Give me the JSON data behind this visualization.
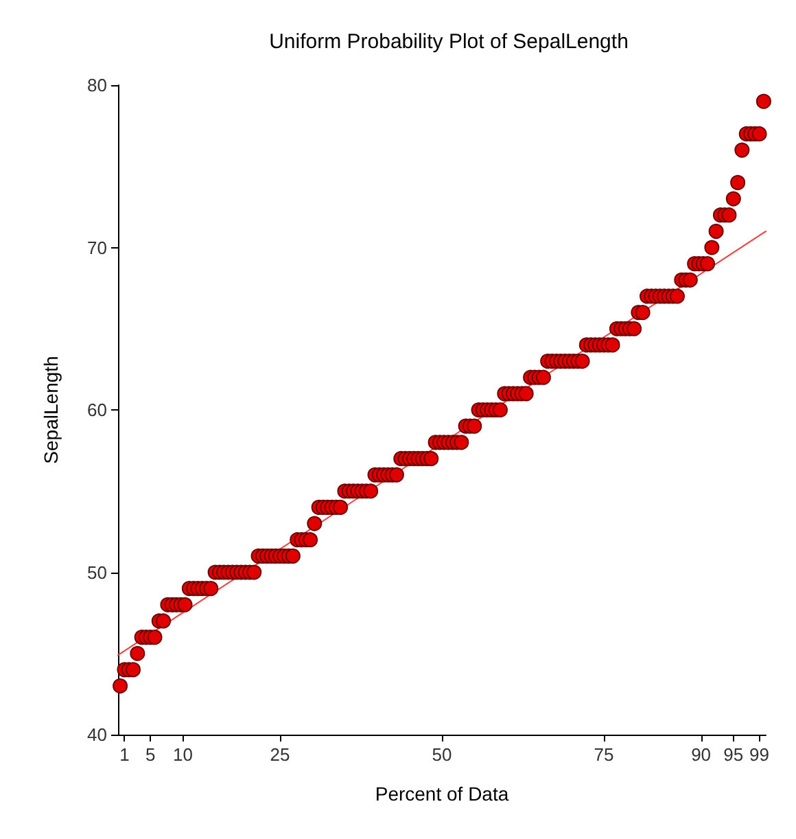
{
  "chart_data": {
    "type": "scatter",
    "title": "Uniform Probability Plot of SepalLength",
    "xlabel": "Percent of Data",
    "ylabel": "SepalLength",
    "xlim": [
      0,
      100
    ],
    "ylim": [
      40,
      80
    ],
    "xticks": [
      1,
      5,
      10,
      25,
      50,
      75,
      90,
      95,
      99
    ],
    "yticks": [
      40,
      50,
      60,
      70,
      80
    ],
    "grid": false,
    "series": [
      {
        "type": "scatter",
        "color": "#e00000",
        "marker": "circle",
        "x": [
          0.33,
          1,
          1.67,
          2.33,
          3,
          3.67,
          4.33,
          5,
          5.67,
          6.33,
          7,
          7.67,
          8.33,
          9,
          9.67,
          10.33,
          11,
          11.67,
          12.33,
          13,
          13.67,
          14.33,
          15,
          15.67,
          16.33,
          17,
          17.67,
          18.33,
          19,
          19.67,
          20.33,
          21,
          21.67,
          22.33,
          23,
          23.67,
          24.33,
          25,
          25.67,
          26.33,
          27,
          27.67,
          28.33,
          29,
          29.67,
          30.33,
          31,
          31.67,
          32.33,
          33,
          33.67,
          34.33,
          35,
          35.67,
          36.33,
          37,
          37.67,
          38.33,
          39,
          39.67,
          40.33,
          41,
          41.67,
          42.33,
          43,
          43.67,
          44.33,
          45,
          45.67,
          46.33,
          47,
          47.67,
          48.33,
          49,
          49.67,
          50.33,
          51,
          51.67,
          52.33,
          53,
          53.67,
          54.33,
          55,
          55.67,
          56.33,
          57,
          57.67,
          58.33,
          59,
          59.67,
          60.33,
          61,
          61.67,
          62.33,
          63,
          63.67,
          64.33,
          65,
          65.67,
          66.33,
          67,
          67.67,
          68.33,
          69,
          69.67,
          70.33,
          71,
          71.67,
          72.33,
          73,
          73.67,
          74.33,
          75,
          75.67,
          76.33,
          77,
          77.67,
          78.33,
          79,
          79.67,
          80.33,
          81,
          81.67,
          82.33,
          83,
          83.67,
          84.33,
          85,
          85.67,
          86.33,
          87,
          87.67,
          88.33,
          89,
          89.67,
          90.33,
          91,
          91.67,
          92.33,
          93,
          93.67,
          94.33,
          95,
          95.67,
          96.33,
          97,
          97.67,
          98.33,
          99,
          99.67
        ],
        "values": [
          43,
          44,
          44,
          44,
          45,
          46,
          46,
          46,
          46,
          47,
          47,
          48,
          48,
          48,
          48,
          48,
          49,
          49,
          49,
          49,
          49,
          49,
          50,
          50,
          50,
          50,
          50,
          50,
          50,
          50,
          50,
          50,
          51,
          51,
          51,
          51,
          51,
          51,
          51,
          51,
          51,
          52,
          52,
          52,
          52,
          53,
          54,
          54,
          54,
          54,
          54,
          54,
          55,
          55,
          55,
          55,
          55,
          55,
          55,
          56,
          56,
          56,
          56,
          56,
          56,
          57,
          57,
          57,
          57,
          57,
          57,
          57,
          57,
          58,
          58,
          58,
          58,
          58,
          58,
          58,
          59,
          59,
          59,
          60,
          60,
          60,
          60,
          60,
          60,
          61,
          61,
          61,
          61,
          61,
          61,
          62,
          62,
          62,
          62,
          63,
          63,
          63,
          63,
          63,
          63,
          63,
          63,
          63,
          64,
          64,
          64,
          64,
          64,
          64,
          64,
          65,
          65,
          65,
          65,
          65,
          66,
          66,
          67,
          67,
          67,
          67,
          67,
          67,
          67,
          67,
          68,
          68,
          68,
          69,
          69,
          69,
          69,
          70,
          71,
          72,
          72,
          72,
          73,
          74,
          76,
          77,
          77,
          77,
          77,
          79
        ]
      },
      {
        "type": "line",
        "color": "#f04040",
        "line_style": "solid",
        "x": [
          0,
          100
        ],
        "values": [
          44.9,
          71
        ]
      }
    ]
  }
}
